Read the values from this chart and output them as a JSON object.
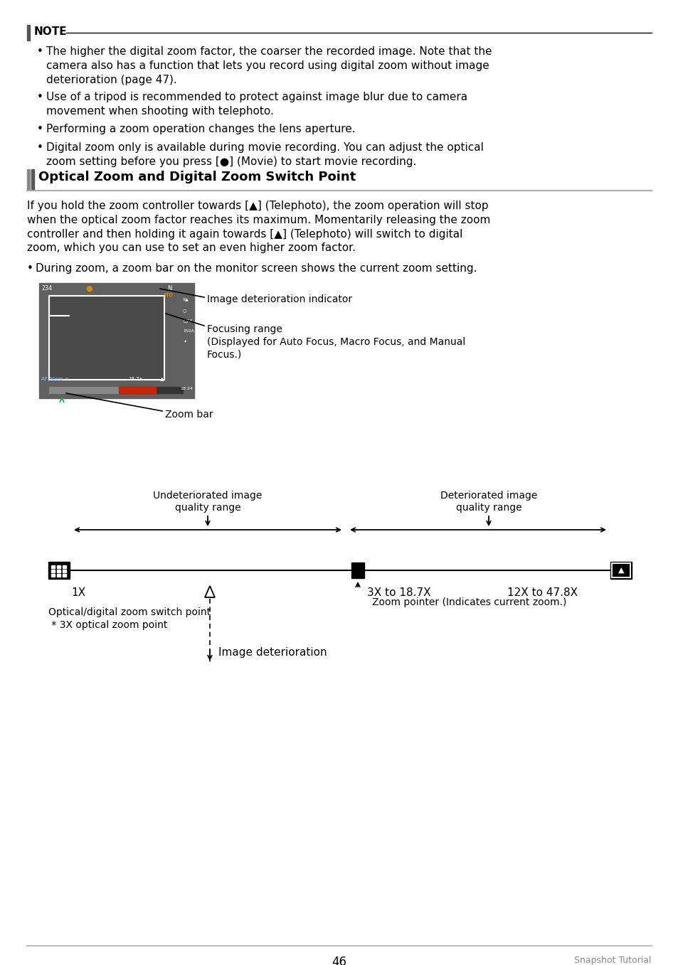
{
  "page_bg": "#ffffff",
  "note_bar_color": "#555555",
  "note_title": "NOTE",
  "note_bullets": [
    "The higher the digital zoom factor, the coarser the recorded image. Note that the\ncamera also has a function that lets you record using digital zoom without image\ndeterioration (page 47).",
    "Use of a tripod is recommended to protect against image blur due to camera\nmovement when shooting with telephoto.",
    "Performing a zoom operation changes the lens aperture.",
    "Digital zoom only is available during movie recording. You can adjust the optical\nzoom setting before you press [●] (Movie) to start movie recording."
  ],
  "section_title": "Optical Zoom and Digital Zoom Switch Point",
  "section_bar_color": "#555555",
  "body_text": "If you hold the zoom controller towards [▲] (Telephoto), the zoom operation will stop\nwhen the optical zoom factor reaches its maximum. Momentarily releasing the zoom\ncontroller and then holding it again towards [▲] (Telephoto) will switch to digital\nzoom, which you can use to set an even higher zoom factor.",
  "bullet_during": "During zoom, a zoom bar on the monitor screen shows the current zoom setting.",
  "diagram_label_deterioration_indicator": "Image deterioration indicator",
  "diagram_label_focusing_range": "Focusing range\n(Displayed for Auto Focus, Macro Focus, and Manual\nFocus.)",
  "diagram_label_zoom_bar": "Zoom bar",
  "label_undeteriorated": "Undeteriorated image\nquality range",
  "label_deteriorated": "Deteriorated image\nquality range",
  "label_1x": "1X",
  "label_3x": "3X to 18.7X",
  "label_12x": "12X to 47.8X",
  "label_switch_point": "Optical/digital zoom switch point\n * 3X optical zoom point",
  "label_zoom_pointer": "Zoom pointer (Indicates current zoom.)",
  "label_image_deterioration": "Image deterioration",
  "footer_page": "46",
  "footer_right": "Snapshot Tutorial",
  "text_color": "#000000",
  "gray_color": "#888888"
}
